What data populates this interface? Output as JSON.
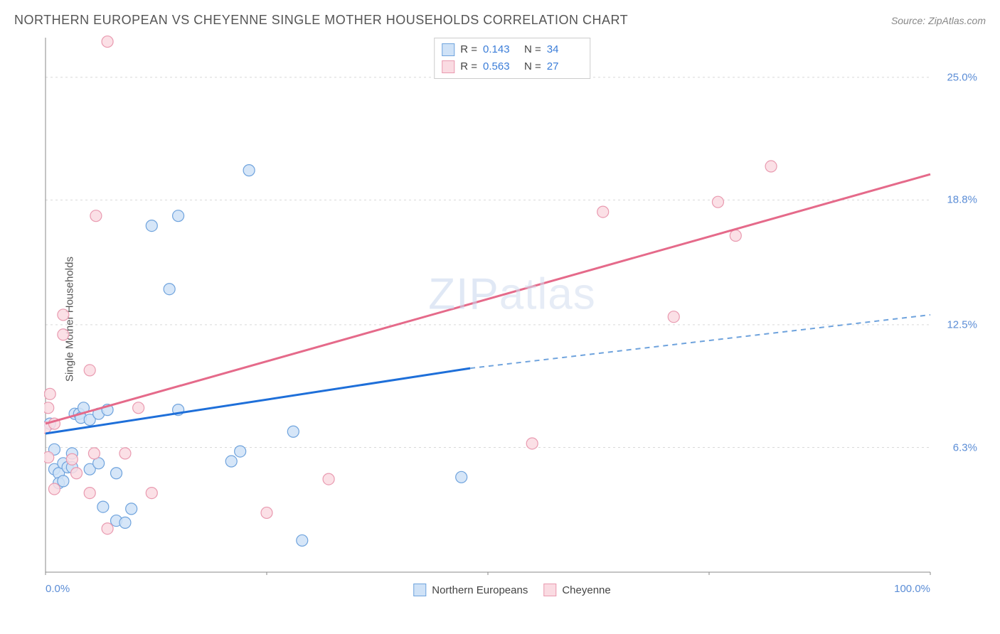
{
  "header": {
    "title": "NORTHERN EUROPEAN VS CHEYENNE SINGLE MOTHER HOUSEHOLDS CORRELATION CHART",
    "source": "Source: ZipAtlas.com"
  },
  "chart": {
    "type": "scatter",
    "ylabel": "Single Mother Households",
    "xlim": [
      0,
      100
    ],
    "ylim": [
      0,
      27
    ],
    "xticks": [
      {
        "pos": 0,
        "label": "0.0%",
        "align": "left"
      },
      {
        "pos": 100,
        "label": "100.0%",
        "align": "right"
      }
    ],
    "yticks": [
      {
        "pos": 6.3,
        "label": "6.3%"
      },
      {
        "pos": 12.5,
        "label": "12.5%"
      },
      {
        "pos": 18.8,
        "label": "18.8%"
      },
      {
        "pos": 25.0,
        "label": "25.0%"
      }
    ],
    "grid_color": "#d9d9d9",
    "axis_color": "#888888",
    "background_color": "#ffffff",
    "watermark": "ZIPatlas",
    "series": [
      {
        "name": "Northern Europeans",
        "color_fill": "#cfe2f7",
        "color_stroke": "#6fa3dd",
        "marker_r": 8,
        "R": "0.143",
        "N": "34",
        "trend": {
          "x1": 0,
          "y1": 7.0,
          "x2": 48,
          "y2": 10.3,
          "x3": 100,
          "y3": 13.0,
          "stroke": "#1e6fd9",
          "dash_stroke": "#6fa3dd"
        },
        "points": [
          [
            0.5,
            7.5
          ],
          [
            1,
            6.2
          ],
          [
            1,
            5.2
          ],
          [
            1.5,
            5.0
          ],
          [
            1.5,
            4.5
          ],
          [
            2,
            5.5
          ],
          [
            2,
            4.6
          ],
          [
            2.5,
            5.3
          ],
          [
            3,
            6.0
          ],
          [
            3,
            5.3
          ],
          [
            3.3,
            8.0
          ],
          [
            3.8,
            8.0
          ],
          [
            4,
            7.8
          ],
          [
            4.3,
            8.3
          ],
          [
            5,
            5.2
          ],
          [
            5,
            7.7
          ],
          [
            6,
            8.0
          ],
          [
            6,
            5.5
          ],
          [
            6.5,
            3.3
          ],
          [
            7,
            8.2
          ],
          [
            8,
            5.0
          ],
          [
            8,
            2.6
          ],
          [
            9,
            2.5
          ],
          [
            9.7,
            3.2
          ],
          [
            12,
            17.5
          ],
          [
            14,
            14.3
          ],
          [
            15,
            18.0
          ],
          [
            15,
            8.2
          ],
          [
            21,
            5.6
          ],
          [
            22,
            6.1
          ],
          [
            23,
            20.3
          ],
          [
            28,
            7.1
          ],
          [
            29,
            1.6
          ],
          [
            47,
            4.8
          ]
        ]
      },
      {
        "name": "Cheyenne",
        "color_fill": "#fadbe2",
        "color_stroke": "#e99ab0",
        "marker_r": 8,
        "R": "0.563",
        "N": "27",
        "trend": {
          "x1": 0,
          "y1": 7.5,
          "x2": 100,
          "y2": 20.1,
          "stroke": "#e56a8a"
        },
        "points": [
          [
            0,
            7.3
          ],
          [
            0.3,
            5.8
          ],
          [
            0.3,
            8.3
          ],
          [
            0.5,
            9.0
          ],
          [
            1,
            7.5
          ],
          [
            1,
            4.2
          ],
          [
            2,
            12.0
          ],
          [
            2,
            13.0
          ],
          [
            3,
            5.7
          ],
          [
            3.5,
            5.0
          ],
          [
            5,
            10.2
          ],
          [
            5,
            4.0
          ],
          [
            5.5,
            6.0
          ],
          [
            5.7,
            18.0
          ],
          [
            7,
            26.8
          ],
          [
            7,
            2.2
          ],
          [
            9,
            6.0
          ],
          [
            10.5,
            8.3
          ],
          [
            12,
            4.0
          ],
          [
            25,
            3.0
          ],
          [
            32,
            4.7
          ],
          [
            63,
            18.2
          ],
          [
            71,
            12.9
          ],
          [
            76,
            18.7
          ],
          [
            78,
            17.0
          ],
          [
            82,
            20.5
          ],
          [
            55,
            6.5
          ]
        ]
      }
    ],
    "bottom_legend": [
      {
        "label": "Northern Europeans",
        "fill": "#cfe2f7",
        "stroke": "#6fa3dd"
      },
      {
        "label": "Cheyenne",
        "fill": "#fadbe2",
        "stroke": "#e99ab0"
      }
    ]
  }
}
